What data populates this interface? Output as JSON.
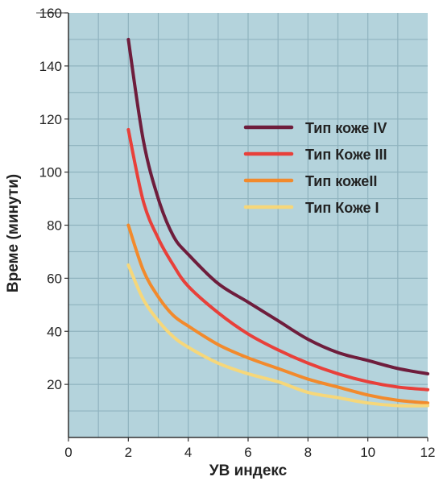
{
  "chart_data": {
    "type": "line",
    "title": "",
    "xlabel": "УВ индекс",
    "ylabel": "Време (минути)",
    "xlim": [
      0,
      12
    ],
    "ylim": [
      0,
      160
    ],
    "x_ticks": [
      "0",
      "2",
      "4",
      "6",
      "8",
      "10",
      "12"
    ],
    "y_ticks": [
      "20",
      "40",
      "60",
      "80",
      "100",
      "120",
      "140",
      "160"
    ],
    "grid": true,
    "legend_position": "top-right",
    "plot_background": "#b4d3dc",
    "grid_color": "#8fb3bf",
    "series": [
      {
        "name": "Тип коже IV",
        "color": "#6e1d3c",
        "x": [
          2,
          2.5,
          3,
          3.5,
          4,
          5,
          6,
          7,
          8,
          9,
          10,
          11,
          12
        ],
        "values": [
          150,
          112,
          90,
          76,
          69,
          58,
          51,
          44,
          37,
          32,
          29,
          26,
          24
        ]
      },
      {
        "name": "Тип Коже III",
        "color": "#e8403a",
        "x": [
          2,
          2.5,
          3,
          3.5,
          4,
          5,
          6,
          7,
          8,
          9,
          10,
          11,
          12
        ],
        "values": [
          116,
          89,
          75,
          65,
          57,
          47,
          39,
          33,
          28,
          24,
          21,
          19,
          18
        ]
      },
      {
        "name": "Тип кожеII",
        "color": "#f28a2c",
        "x": [
          2,
          2.5,
          3,
          3.5,
          4,
          5,
          6,
          7,
          8,
          9,
          10,
          11,
          12
        ],
        "values": [
          80,
          63,
          53,
          46,
          42,
          35,
          30,
          26,
          22,
          19,
          16,
          14,
          13
        ]
      },
      {
        "name": "Тип Коже I",
        "color": "#f6d77a",
        "x": [
          2,
          2.5,
          3,
          3.5,
          4,
          5,
          6,
          7,
          8,
          9,
          10,
          11,
          12
        ],
        "values": [
          65,
          52,
          44,
          38,
          34,
          28,
          24,
          21,
          17,
          15,
          13,
          12,
          12
        ]
      }
    ]
  }
}
